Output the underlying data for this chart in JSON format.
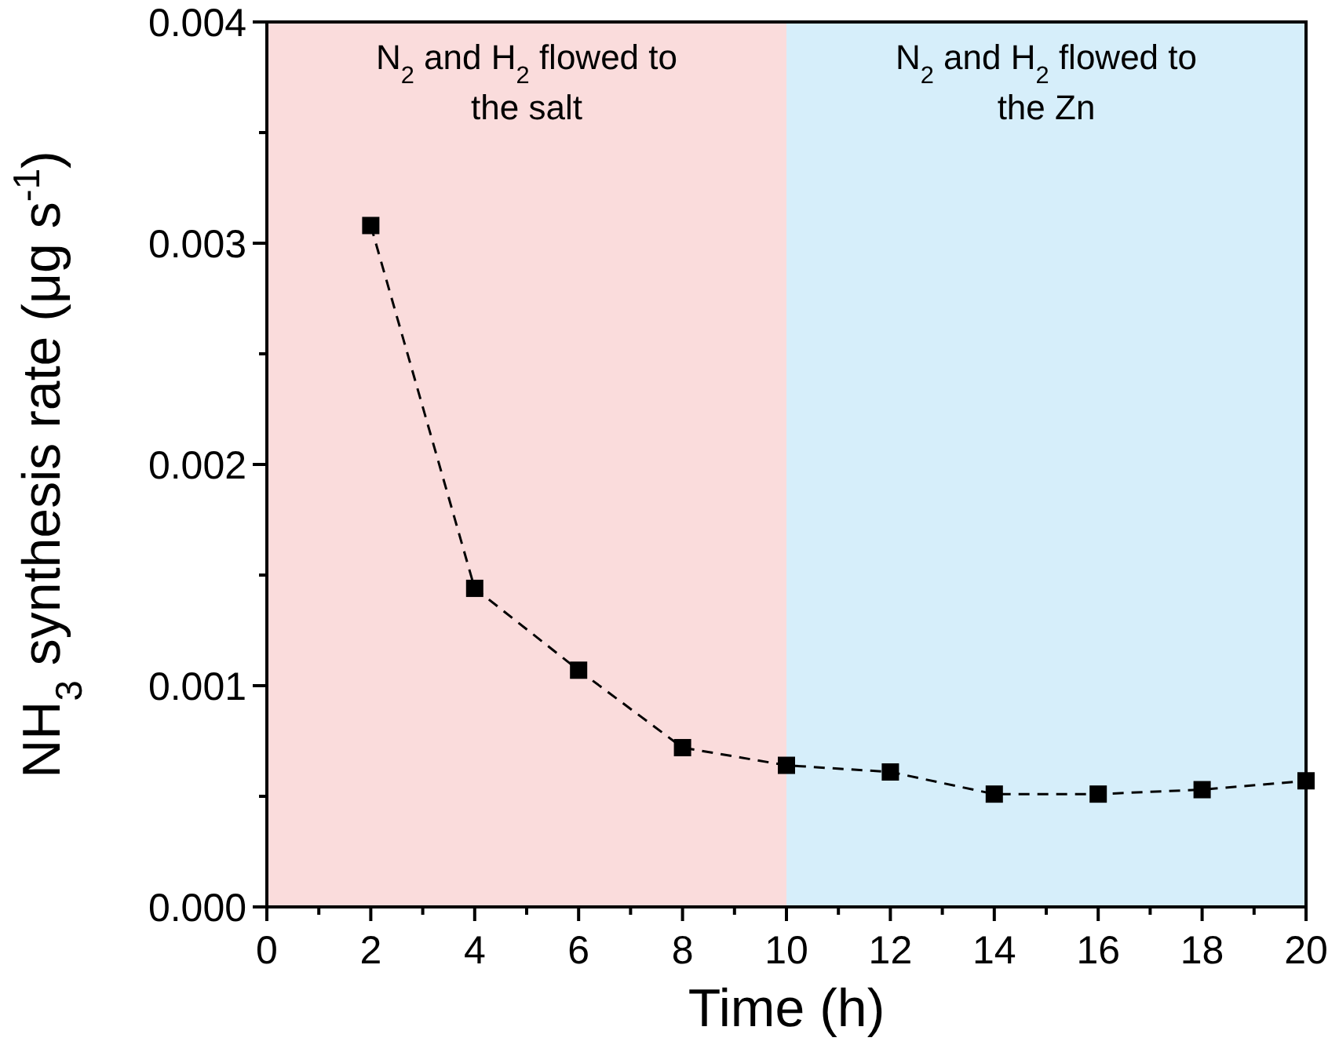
{
  "chart_data": {
    "type": "line",
    "xlabel": "Time (h)",
    "ylabel": "NH$_{3}$ synthesis rate (μg s$^{-1}$)",
    "x": [
      2,
      4,
      6,
      8,
      10,
      12,
      14,
      16,
      18,
      20
    ],
    "series": [
      {
        "color": "#000000",
        "values": [
          0.00308,
          0.00144,
          0.00107,
          0.00072,
          0.00064,
          0.00061,
          0.00051,
          0.00051,
          0.00053,
          0.00057
        ]
      }
    ],
    "marker": "square",
    "line_style": "dashed",
    "xlim": [
      0,
      20
    ],
    "xticks": [
      0,
      2,
      4,
      6,
      8,
      10,
      12,
      14,
      16,
      18,
      20
    ],
    "ylim": [
      0,
      0.004
    ],
    "yticks": [
      {
        "value": 0,
        "label": "0.000"
      },
      {
        "value": 0.001,
        "label": "0.001"
      },
      {
        "value": 0.002,
        "label": "0.002"
      },
      {
        "value": 0.003,
        "label": "0.003"
      },
      {
        "value": 0.004,
        "label": "0.004"
      }
    ],
    "bands": [
      {
        "axis": "x",
        "from": 0,
        "to": 10,
        "label": "N$_{2}$ and H$_{2}$ flowed to\nthe salt",
        "color": "#fadcdc"
      },
      {
        "axis": "x",
        "from": 10,
        "to": 20,
        "label": "N$_{2}$ and H$_{2}$ flowed to\nthe Zn",
        "color": "#d6eefa"
      }
    ],
    "grid": false
  }
}
